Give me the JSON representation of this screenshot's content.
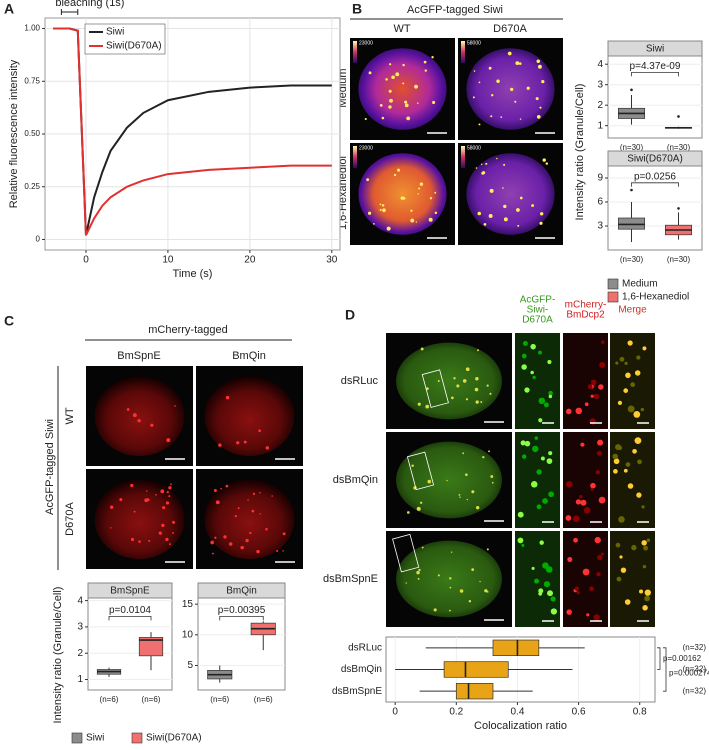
{
  "figure": {
    "panel_labels": [
      "A",
      "B",
      "C",
      "D"
    ],
    "B": {
      "header": "AcGFP-tagged Siwi",
      "columns": [
        "WT",
        "D670A"
      ],
      "rows": [
        "Medium",
        "1,6-Hexanediol"
      ],
      "colorbar_max": [
        "23000",
        "58000",
        "23000",
        "58000"
      ],
      "y_label": "Intensity ratio (Granule/Cell)",
      "legend": [
        {
          "name": "Medium",
          "color": "#8c8c8c"
        },
        {
          "name": "1,6-Hexanediol",
          "color": "#f07070"
        }
      ]
    },
    "C": {
      "header": "mCherry-tagged",
      "columns": [
        "BmSpnE",
        "BmQin"
      ],
      "row_header": "AcGFP-tagged Siwi",
      "rows": [
        "WT",
        "D670A"
      ],
      "y_label": "Intensity ratio (Granule/Cell)",
      "legend": [
        {
          "name": "Siwi",
          "color": "#8c8c8c"
        },
        {
          "name": "Siwi(D670A)",
          "color": "#f07070"
        }
      ]
    },
    "D": {
      "columns": [
        [
          "AcGFP-",
          "Siwi-",
          "D670A"
        ],
        [
          "mCherry-",
          "BmDcp2"
        ],
        [
          "Merge"
        ]
      ],
      "rows": [
        "dsRLuc",
        "dsBmQin",
        "dsBmSpnE"
      ]
    }
  },
  "chart_data": [
    {
      "type": "line",
      "annotation": "bleaching (1s)",
      "x_label": "Time (s)",
      "y_label": "Relative fluorescence intensity",
      "x": [
        -4,
        -3,
        -2,
        -1,
        0,
        1,
        2,
        3,
        5,
        7,
        10,
        15,
        20,
        25,
        30
      ],
      "series": [
        {
          "name": "Siwi",
          "color": "#222222",
          "values": [
            1.0,
            1.0,
            1.0,
            0.99,
            0.02,
            0.2,
            0.32,
            0.42,
            0.53,
            0.6,
            0.66,
            0.7,
            0.72,
            0.73,
            0.73
          ]
        },
        {
          "name": "Siwi(D670A)",
          "color": "#e03030",
          "values": [
            1.0,
            1.0,
            1.0,
            0.99,
            0.02,
            0.1,
            0.16,
            0.2,
            0.25,
            0.28,
            0.31,
            0.33,
            0.34,
            0.35,
            0.35
          ]
        }
      ],
      "xlim": [
        -5,
        31
      ],
      "xticks": [
        0,
        10,
        20,
        30
      ],
      "ylim": [
        -0.05,
        1.05
      ],
      "yticks": [
        0,
        0.25,
        {
          "value": 0.5,
          "label": "0.50"
        },
        0.75,
        {
          "value": 1,
          "label": "1.00"
        }
      ],
      "grid": true,
      "legend": "upper left"
    },
    {
      "type": "box",
      "title": "Siwi",
      "annotation": "p=4.37e-09",
      "ylim": [
        0.4,
        4.4
      ],
      "yticks": [
        1,
        2,
        3,
        4
      ],
      "groups": [
        {
          "label": "(n=30)",
          "color": "#8c8c8c",
          "low": 1.05,
          "q1": 1.35,
          "median": 1.6,
          "q3": 1.85,
          "high": 2.5,
          "outliers": [
            2.75
          ]
        },
        {
          "label": "(n=30)",
          "color": "#f07070",
          "low": 0.85,
          "q1": 0.88,
          "median": 0.9,
          "q3": 0.92,
          "high": 0.95,
          "outliers": [
            1.45
          ]
        }
      ]
    },
    {
      "type": "box",
      "title": "Siwi(D670A)",
      "annotation": "p=0.0256",
      "ylim": [
        0,
        10.5
      ],
      "yticks": [
        3,
        6,
        9
      ],
      "groups": [
        {
          "label": "(n=30)",
          "color": "#8c8c8c",
          "low": 1,
          "q1": 2.6,
          "median": 3.2,
          "q3": 4,
          "high": 6,
          "outliers": [
            7.5
          ]
        },
        {
          "label": "(n=30)",
          "color": "#f07070",
          "low": 1.3,
          "q1": 1.9,
          "median": 2.5,
          "q3": 3.1,
          "high": 4.7,
          "outliers": [
            5.2
          ]
        }
      ]
    },
    {
      "type": "box",
      "title": "BmSpnE",
      "annotation": "p=0.0104",
      "ylim": [
        0.6,
        4.1
      ],
      "yticks": [
        1,
        2,
        3,
        4
      ],
      "groups": [
        {
          "label": "(n=6)",
          "color": "#8c8c8c",
          "low": 1.1,
          "q1": 1.2,
          "median": 1.3,
          "q3": 1.38,
          "high": 1.45,
          "outliers": []
        },
        {
          "label": "(n=6)",
          "color": "#f07070",
          "low": 1.35,
          "q1": 1.9,
          "median": 2.5,
          "q3": 2.6,
          "high": 2.8,
          "outliers": []
        }
      ]
    },
    {
      "type": "box",
      "title": "BmQin",
      "annotation": "p=0.00395",
      "ylim": [
        1,
        16
      ],
      "yticks": [
        5,
        10,
        15
      ],
      "groups": [
        {
          "label": "(n=6)",
          "color": "#8c8c8c",
          "low": 2.2,
          "q1": 2.8,
          "median": 3.5,
          "q3": 4.2,
          "high": 5,
          "outliers": []
        },
        {
          "label": "(n=6)",
          "color": "#f07070",
          "low": 7.5,
          "q1": 10,
          "median": 11,
          "q3": 11.9,
          "high": 12.2,
          "outliers": []
        }
      ]
    },
    {
      "type": "hbox",
      "x_label": "Colocalization ratio",
      "color": "#e8a317",
      "annotations": [
        "p=0.00162",
        "p=0.000274"
      ],
      "xlim": [
        -0.03,
        0.85
      ],
      "xticks": [
        0,
        0.2,
        0.4,
        0.6,
        0.8
      ],
      "groups": [
        {
          "label": "dsRLuc",
          "n": "(n=32)",
          "low": 0.1,
          "q1": 0.32,
          "median": 0.4,
          "q3": 0.47,
          "high": 0.62
        },
        {
          "label": "dsBmQin",
          "n": "(n=32)",
          "low": 0.0,
          "q1": 0.16,
          "median": 0.23,
          "q3": 0.37,
          "high": 0.58
        },
        {
          "label": "dsBmSpnE",
          "n": "(n=32)",
          "low": 0.08,
          "q1": 0.2,
          "median": 0.24,
          "q3": 0.32,
          "high": 0.45
        }
      ]
    }
  ]
}
